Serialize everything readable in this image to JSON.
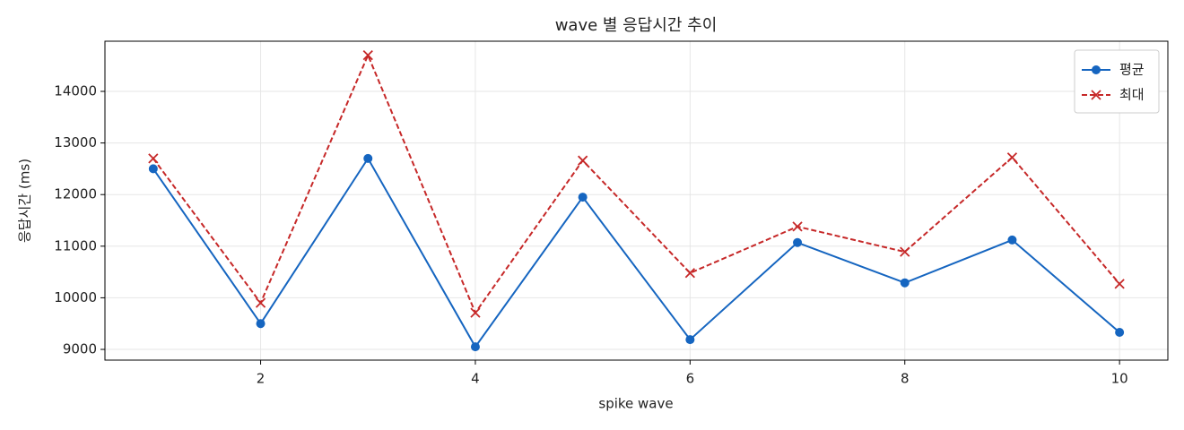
{
  "chart_data": {
    "type": "line",
    "title": "wave 별 응답시간 추이",
    "x_label": "spike wave",
    "y_label": "응답시간 (ms)",
    "x": [
      1,
      2,
      3,
      4,
      5,
      6,
      7,
      8,
      9,
      10
    ],
    "series": [
      {
        "name": "평균",
        "color": "#1565c0",
        "marker": "circle",
        "dash": false,
        "values": [
          12500,
          9500,
          12700,
          9050,
          11950,
          9190,
          11070,
          10290,
          11120,
          9330
        ]
      },
      {
        "name": "최대",
        "color": "#c62828",
        "marker": "x",
        "dash": true,
        "values": [
          12700,
          9900,
          14700,
          9710,
          12660,
          10480,
          11380,
          10890,
          12720,
          10270
        ]
      }
    ],
    "xlim": [
      0.55,
      10.45
    ],
    "ylim": [
      8792,
      14972
    ],
    "xticks": [
      2,
      4,
      6,
      8,
      10
    ],
    "yticks": [
      9000,
      10000,
      11000,
      12000,
      13000,
      14000
    ],
    "grid": true,
    "legend": "upper right"
  }
}
